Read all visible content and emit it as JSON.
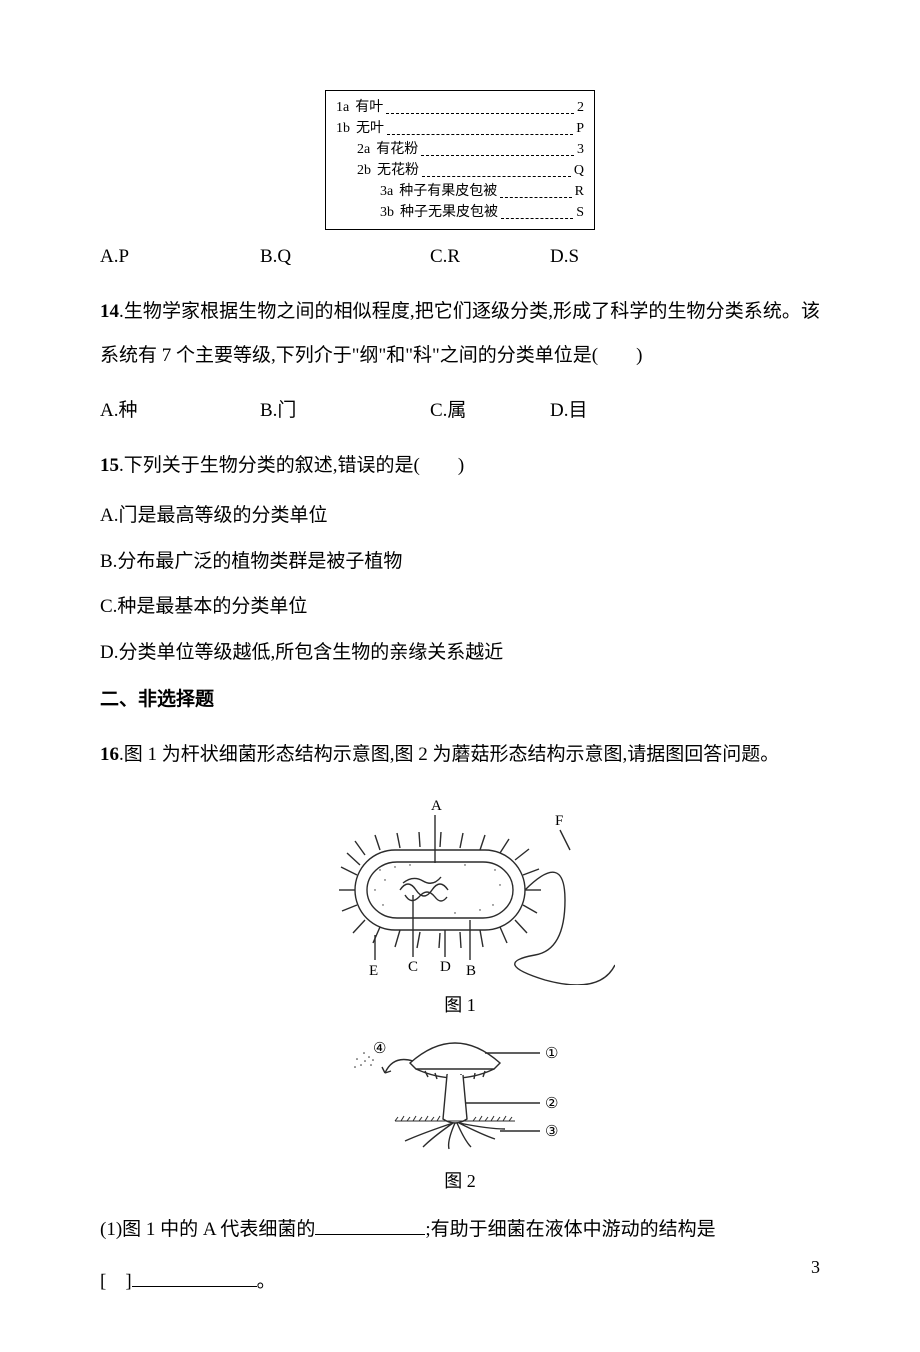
{
  "key_box": {
    "border_color": "#000000",
    "font_size": 14,
    "rows": [
      {
        "indent": 0,
        "code": "1a",
        "text": "有叶",
        "end": "2"
      },
      {
        "indent": 0,
        "code": "1b",
        "text": "无叶",
        "end": "P"
      },
      {
        "indent": 1,
        "code": "2a",
        "text": "有花粉",
        "end": "3"
      },
      {
        "indent": 1,
        "code": "2b",
        "text": "无花粉",
        "end": "Q"
      },
      {
        "indent": 2,
        "code": "3a",
        "text": "种子有果皮包被",
        "end": "R"
      },
      {
        "indent": 2,
        "code": "3b",
        "text": "种子无果皮包被",
        "end": "S"
      }
    ]
  },
  "q13_options": {
    "a": "A.P",
    "b": "B.Q",
    "c": "C.R",
    "d": "D.S"
  },
  "q14": {
    "num": "14",
    "text": ".生物学家根据生物之间的相似程度,把它们逐级分类,形成了科学的生物分类系统。该系统有 7 个主要等级,下列介于\"纲\"和\"科\"之间的分类单位是(　　)",
    "opts": {
      "a": "A.种",
      "b": "B.门",
      "c": "C.属",
      "d": "D.目"
    }
  },
  "q15": {
    "num": "15",
    "text": ".下列关于生物分类的叙述,错误的是(　　)",
    "opts": {
      "a": "A.门是最高等级的分类单位",
      "b": "B.分布最广泛的植物类群是被子植物",
      "c": "C.种是最基本的分类单位",
      "d": "D.分类单位等级越低,所包含生物的亲缘关系越近"
    }
  },
  "section2": "二、非选择题",
  "q16": {
    "num": "16",
    "text": ".图 1 为杆状细菌形态结构示意图,图 2 为蘑菇形态结构示意图,请据图回答问题。"
  },
  "fig1": {
    "label": "图 1",
    "labels": {
      "A": "A",
      "B": "B",
      "C": "C",
      "D": "D",
      "E": "E",
      "F": "F"
    },
    "stroke": "#2b2b2b",
    "fill": "#ffffff"
  },
  "fig2": {
    "label": "图 2",
    "labels": {
      "n1": "①",
      "n2": "②",
      "n3": "③",
      "n4": "④"
    },
    "symbol4": "④",
    "stroke": "#2b2b2b",
    "fill": "#ffffff",
    "ground_fill": "#c8c8c8"
  },
  "sub1": {
    "text_a": "(1)图 1 中的 A 代表细菌的",
    "text_b": ";有助于细菌在液体中游动的结构是",
    "text_c": "[　]",
    "text_d": "。"
  },
  "page_number": "3",
  "colors": {
    "text": "#000000",
    "bg": "#ffffff"
  }
}
